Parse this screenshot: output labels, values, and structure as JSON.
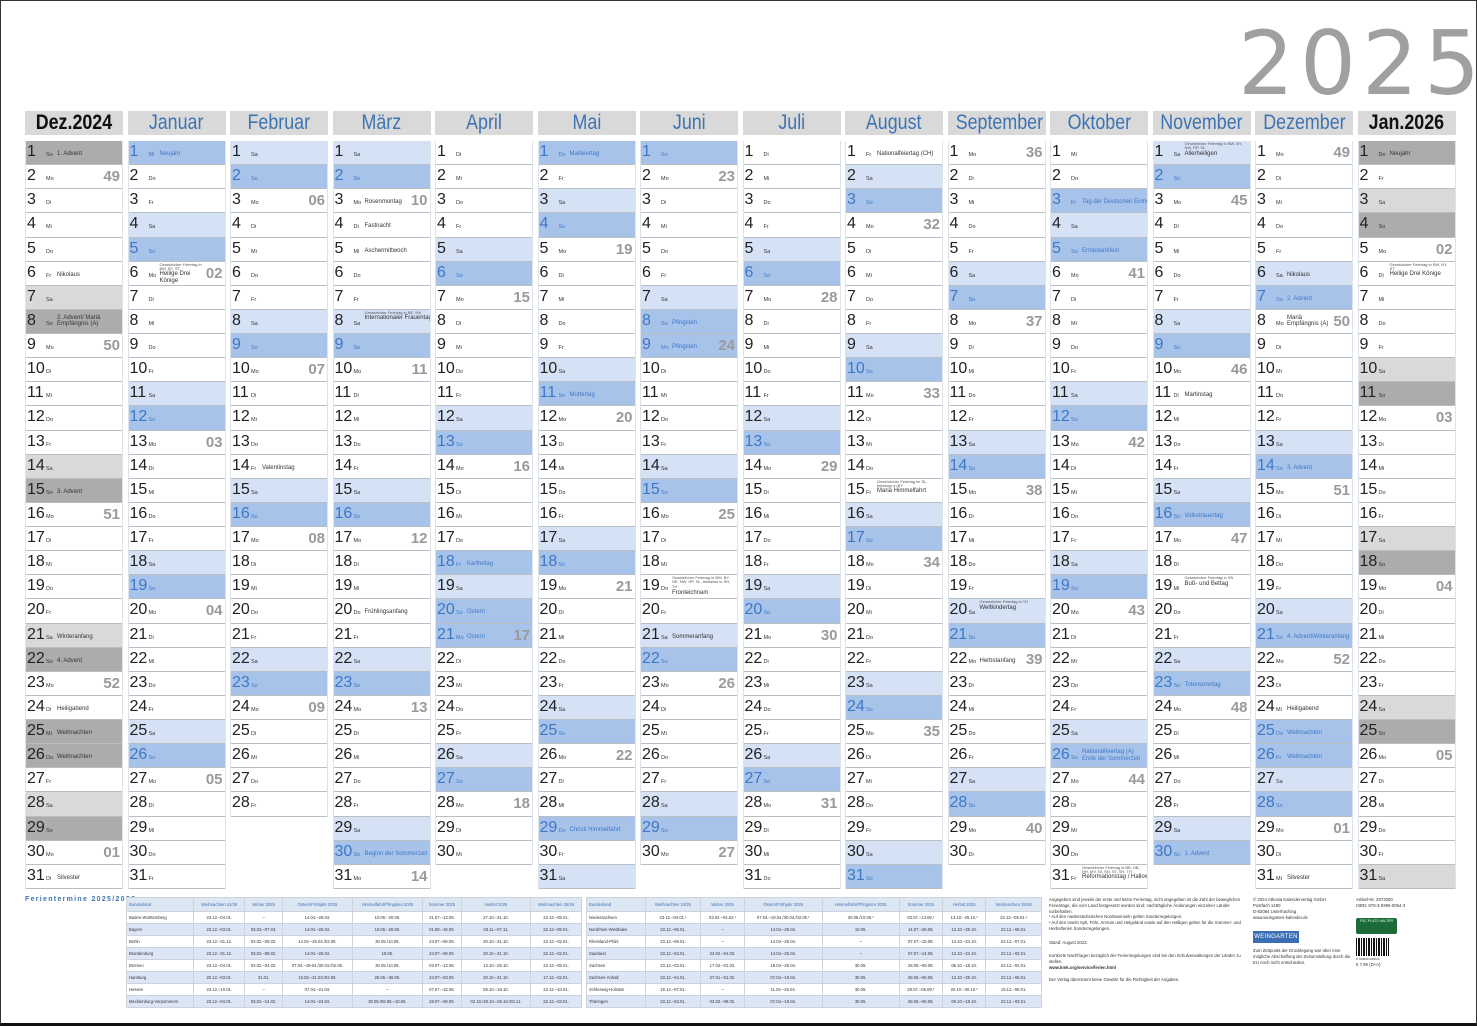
{
  "year_title": "2025",
  "weekdays": [
    "Mo",
    "Di",
    "Mi",
    "Do",
    "Fr",
    "Sa",
    "So"
  ],
  "colors": {
    "accent": "#3e73b3",
    "saturday": "#d5e2f6",
    "sunday_holiday": "#a8c3ea",
    "gray_saturday": "#d9d9d9",
    "gray_sunday": "#acacac",
    "week_number": "#9a9a9a"
  },
  "months": [
    {
      "label": "Dez.2024",
      "year": 2024,
      "month": 12,
      "variant": "gray",
      "notes": [
        {
          "d": 1,
          "t": "1. Advent"
        },
        {
          "d": 6,
          "t": "Nikolaus"
        },
        {
          "d": 8,
          "t": "2. Advent/ Mariä Empfängnis (A)",
          "two": true
        },
        {
          "d": 15,
          "t": "3. Advent"
        },
        {
          "d": 21,
          "t": "Winteranfang"
        },
        {
          "d": 22,
          "t": "4. Advent"
        },
        {
          "d": 24,
          "t": "Heiligabend"
        },
        {
          "d": 25,
          "t": "Weihnachten",
          "hol": true
        },
        {
          "d": 26,
          "t": "Weihnachten",
          "hol": true
        },
        {
          "d": 31,
          "t": "Silvester"
        }
      ]
    },
    {
      "label": "Januar",
      "year": 2025,
      "month": 1,
      "variant": "blue",
      "notes": [
        {
          "d": 1,
          "t": "Neujahr",
          "hol": true
        },
        {
          "d": 6,
          "t": "Heilige Drei Könige",
          "sub": "Gesetzlicher Feiertag in BW, BY, ST"
        }
      ]
    },
    {
      "label": "Februar",
      "year": 2025,
      "month": 2,
      "variant": "blue",
      "notes": [
        {
          "d": 14,
          "t": "Valentinstag"
        }
      ]
    },
    {
      "label": "März",
      "year": 2025,
      "month": 3,
      "variant": "blue",
      "notes": [
        {
          "d": 3,
          "t": "Rosenmontag"
        },
        {
          "d": 4,
          "t": "Fastnacht"
        },
        {
          "d": 5,
          "t": "Aschermittwoch"
        },
        {
          "d": 8,
          "t": "Internationaler Frauentag",
          "sub": "Gesetzlicher Feiertag in BE, MV"
        },
        {
          "d": 20,
          "t": "Frühlingsanfang"
        },
        {
          "d": 30,
          "t": "Beginn der Sommerzeit"
        }
      ]
    },
    {
      "label": "April",
      "year": 2025,
      "month": 4,
      "variant": "blue",
      "notes": [
        {
          "d": 18,
          "t": "Karfreitag",
          "hol": true
        },
        {
          "d": 20,
          "t": "Ostern",
          "hol": true
        },
        {
          "d": 21,
          "t": "Ostern",
          "hol": true
        }
      ]
    },
    {
      "label": "Mai",
      "year": 2025,
      "month": 5,
      "variant": "blue",
      "notes": [
        {
          "d": 1,
          "t": "Maifeiertag",
          "hol": true
        },
        {
          "d": 11,
          "t": "Muttertag"
        },
        {
          "d": 29,
          "t": "Christi Himmelfahrt",
          "hol": true
        }
      ]
    },
    {
      "label": "Juni",
      "year": 2025,
      "month": 6,
      "variant": "blue",
      "notes": [
        {
          "d": 8,
          "t": "Pfingsten",
          "hol": true
        },
        {
          "d": 9,
          "t": "Pfingsten",
          "hol": true
        },
        {
          "d": 19,
          "t": "Fronleichnam",
          "sub": "Gesetzlicher Feiertag in BW, BY, HE, NW, RP, SL, teilweise in SN, TH"
        },
        {
          "d": 21,
          "t": "Sommeranfang"
        }
      ]
    },
    {
      "label": "Juli",
      "year": 2025,
      "month": 7,
      "variant": "blue",
      "notes": []
    },
    {
      "label": "August",
      "year": 2025,
      "month": 8,
      "variant": "blue",
      "notes": [
        {
          "d": 1,
          "t": "Nationalfeiertag (CH)"
        },
        {
          "d": 15,
          "t": "Mariä Himmelfahrt",
          "sub": "Gesetzlicher Feiertag im SL, teilweise in BY"
        }
      ]
    },
    {
      "label": "September",
      "year": 2025,
      "month": 9,
      "variant": "blue",
      "notes": [
        {
          "d": 20,
          "t": "Weltkindertag",
          "sub": "Gesetzlicher Feiertag in TH"
        },
        {
          "d": 22,
          "t": "Herbstanfang"
        }
      ]
    },
    {
      "label": "Oktober",
      "year": 2025,
      "month": 10,
      "variant": "blue",
      "notes": [
        {
          "d": 3,
          "t": "Tag der Deutschen Einheit",
          "hol": true
        },
        {
          "d": 5,
          "t": "Erntedankfest"
        },
        {
          "d": 26,
          "t": "Nationalfeiertag (A) Ende der Sommerzeit",
          "two": true
        },
        {
          "d": 31,
          "t": "Reformationstag / Halloween",
          "sub": "Gesetzlicher Feiertag in BB, HB, HH, MV, NI, SN, ST, SH, TH"
        }
      ]
    },
    {
      "label": "November",
      "year": 2025,
      "month": 11,
      "variant": "blue",
      "notes": [
        {
          "d": 1,
          "t": "Allerheiligen",
          "sub": "Gesetzlicher Feiertag in BW, BY, NW, RP, SL"
        },
        {
          "d": 11,
          "t": "Martinstag"
        },
        {
          "d": 16,
          "t": "Volkstrauertag"
        },
        {
          "d": 19,
          "t": "Buß- und Bettag",
          "sub": "Gesetzlicher Feiertag in SN"
        },
        {
          "d": 23,
          "t": "Totensonntag"
        },
        {
          "d": 30,
          "t": "1. Advent"
        }
      ]
    },
    {
      "label": "Dezember",
      "year": 2025,
      "month": 12,
      "variant": "blue",
      "notes": [
        {
          "d": 6,
          "t": "Nikolaus"
        },
        {
          "d": 7,
          "t": "2. Advent"
        },
        {
          "d": 8,
          "t": "Mariä Empfängnis (A)",
          "two": true
        },
        {
          "d": 14,
          "t": "3. Advent"
        },
        {
          "d": 21,
          "t": "4. Advent/Winteranfang"
        },
        {
          "d": 24,
          "t": "Heiligabend"
        },
        {
          "d": 25,
          "t": "Weihnachten",
          "hol": true
        },
        {
          "d": 26,
          "t": "Weihnachten",
          "hol": true
        },
        {
          "d": 31,
          "t": "Silvester"
        }
      ]
    },
    {
      "label": "Jan.2026",
      "year": 2026,
      "month": 1,
      "variant": "gray",
      "notes": [
        {
          "d": 1,
          "t": "Neujahr",
          "hol": true
        },
        {
          "d": 6,
          "t": "Heilige Drei Könige",
          "sub": "Gesetzlicher Feiertag in BW, BY, ST"
        }
      ]
    }
  ],
  "holidays": {
    "title": "Ferientermine 2025/2026",
    "headers": [
      "Bundesland",
      "Weihnachten 24/25",
      "Winter 2025",
      "Ostern/Frühjahr 2025",
      "Himmelfahrt/Pfingsten 2025",
      "Sommer 2025",
      "Herbst 2025",
      "Weihnachten 25/26"
    ],
    "table1": [
      [
        "Baden-Württemberg",
        "23.12.–04.01.",
        "–",
        "14.04.–26.04.",
        "10.06.–20.06.",
        "31.07.–13.09.",
        "27.10.–31.10.",
        "22.12.–05.01."
      ],
      [
        "Bayern",
        "23.12.–03.01.",
        "03.03.–07.03.",
        "14.04.–25.04.",
        "10.06.–20.06.",
        "01.08.–15.09.",
        "03.11.–07.11.",
        "22.12.–05.01."
      ],
      [
        "Berlin",
        "23.12.–31.12.",
        "03.02.–08.02.",
        "14.04.–25.04./02.05.",
        "30.05./10.06.",
        "24.07.–06.09.",
        "20.10.–31.10.",
        "22.12.–02.01."
      ],
      [
        "Brandenburg",
        "23.12.–31.12.",
        "03.02.–08.02.",
        "14.04.–25.04.",
        "10.06.",
        "24.07.–06.09.",
        "20.10.–31.10.",
        "22.12.–02.01."
      ],
      [
        "Bremen",
        "23.12.–04.01.",
        "03.02.–04.02.",
        "07.04.–19.04./30.04./02.05.",
        "30.05./10.06.",
        "03.07.–13.08.",
        "13.10.–25.10.",
        "22.12.–05.01."
      ],
      [
        "Hamburg",
        "20.12.–03.01.",
        "31.01.",
        "10.03.–21.03./02.05.",
        "26.05.–30.05.",
        "24.07.–03.09.",
        "20.10.–31.10.",
        "17.12.–02.01."
      ],
      [
        "Hessen",
        "23.12.–10.01.",
        "–",
        "07.04.–21.04.",
        "–",
        "07.07.–15.08.",
        "06.10.–18.10.",
        "22.12.–10.01."
      ],
      [
        "Mecklenburg-Vorpommern",
        "23.12.–04.01.",
        "03.02.–14.02.",
        "14.04.–23.04.",
        "30.05./06.06.–10.06.",
        "28.07.–06.09.",
        "02.10./20.10.–25.10./03.11.",
        "22.12.–03.01."
      ]
    ],
    "table2": [
      [
        "Niedersachsen",
        "23.12.–04.01.¹",
        "03.02.–04.02.¹",
        "07.04.–19.04./30.04./02.05.¹",
        "30.05./10.06.¹",
        "03.07.–13.08.¹",
        "13.10.–25.10.¹",
        "22.12.–05.01.¹"
      ],
      [
        "Nordrhein-Westfalen",
        "23.12.–06.01.",
        "–",
        "14.04.–26.04.",
        "10.06.",
        "14.07.–26.08.",
        "13.10.–25.10.",
        "22.12.–06.01."
      ],
      [
        "Rheinland-Pfalz",
        "23.12.–08.01.",
        "–",
        "14.04.–25.04.",
        "–",
        "07.07.–15.08.",
        "13.10.–24.10.",
        "22.12.–07.01."
      ],
      [
        "Saarland",
        "23.12.–03.01.",
        "24.02.–04.03.",
        "14.04.–25.04.",
        "–",
        "07.07.–14.08.",
        "13.10.–24.10.",
        "22.12.–02.01."
      ],
      [
        "Sachsen",
        "23.12.–03.01.",
        "17.02.–01.03.",
        "18.04.–25.04.",
        "30.05.",
        "28.06.–08.08.",
        "06.10.–18.10.",
        "22.12.–02.01."
      ],
      [
        "Sachsen-Anhalt",
        "23.12.–04.01.",
        "27.01.–01.02.",
        "07.04.–19.04.",
        "30.05.",
        "28.06.–08.08.",
        "13.10.–25.10.",
        "22.12.–05.01."
      ],
      [
        "Schleswig-Holstein",
        "19.12.–07.01.",
        "–",
        "11.04.–25.04.",
        "30.05.",
        "28.07.–06.09.²",
        "20.10.–30.10.²",
        "19.12.–06.01."
      ],
      [
        "Thüringen",
        "23.12.–03.01.",
        "03.02.–08.02.",
        "07.04.–19.04.",
        "30.05.",
        "28.06.–08.08.",
        "06.10.–18.10.",
        "22.12.–03.01."
      ]
    ]
  },
  "footnotes": {
    "intro": "Angegeben sind jeweils der erste und letzte Ferientag, nicht angegeben ist die Zahl der beweglichen Ferientage, die vom Land festgesetzt worden sind; nachträgliche Änderungen einzelner Länder vorbehalten.",
    "note1": "¹ Auf den niedersächsischen Nordseeinseln gelten Sonderregelungen.",
    "note2": "² Auf den Inseln Sylt, Föhr, Amrum und Helgoland sowie auf den Halligen gelten für die Sommer- und Herbstferien Sonderregelungen.",
    "stand": "Stand: August 2023.",
    "contact": "Konkrete Nachfragen bezüglich der Ferienregelungen sind bei den Schulverwaltungen der Länder zu stellen.",
    "url": "www.kmk.org/service/ferien.html",
    "disclaimer": "Der Verlag übernimmt keine Gewähr für die Richtigkeit der Angaben."
  },
  "publisher": {
    "lines": [
      "© 2024 Athesia Kalenderverlag GmbH",
      "Postfach 1480",
      "D-82084 Unterhaching",
      "www.weingarten-kalender.de"
    ],
    "logo": "WEINGARTEN",
    "eu_note": "Zum Zeitpunkt der Drucklegung war über eine mögliche Abschaffung der Zeitumstellung durch die EU noch nicht entschieden."
  },
  "article": {
    "number": "Artikel-Nr. 2973300",
    "isbn": "ISBN: 978-3-8396-0054-3",
    "fsc": "FSC PLATZ HALTER",
    "barcode": "9 783839 600543",
    "price": "€ 7,99 (D+A)"
  }
}
